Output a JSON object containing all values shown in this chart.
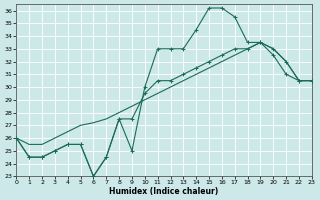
{
  "xlabel": "Humidex (Indice chaleur)",
  "background_color": "#cce8e8",
  "line_color": "#1a6b5a",
  "grid_color": "#b8d8d8",
  "x_values": [
    0,
    1,
    2,
    3,
    4,
    5,
    6,
    7,
    8,
    9,
    10,
    11,
    12,
    13,
    14,
    15,
    16,
    17,
    18,
    19,
    20,
    21,
    22,
    23
  ],
  "line1_y": [
    26.0,
    24.5,
    24.5,
    25.0,
    25.5,
    25.5,
    23.0,
    24.5,
    27.5,
    25.0,
    30.0,
    33.0,
    33.0,
    33.0,
    34.5,
    36.2,
    36.2,
    35.5,
    33.5,
    33.5,
    32.5,
    31.0,
    30.5,
    30.5
  ],
  "line2_y": [
    26.0,
    24.5,
    24.5,
    25.0,
    25.5,
    25.5,
    23.0,
    24.5,
    27.5,
    27.5,
    29.5,
    30.5,
    30.5,
    31.0,
    31.5,
    32.0,
    32.5,
    33.0,
    33.0,
    33.5,
    33.0,
    32.0,
    30.5,
    30.5
  ],
  "line3_y": [
    26.0,
    25.5,
    25.5,
    26.0,
    26.5,
    27.0,
    27.2,
    27.5,
    28.0,
    28.5,
    29.0,
    29.5,
    30.0,
    30.5,
    31.0,
    31.5,
    32.0,
    32.5,
    33.0,
    33.5,
    33.0,
    32.0,
    30.5,
    30.5
  ],
  "ylim": [
    23,
    36.5
  ],
  "xlim": [
    0,
    23
  ],
  "yticks": [
    23,
    24,
    25,
    26,
    27,
    28,
    29,
    30,
    31,
    32,
    33,
    34,
    35,
    36
  ],
  "xticks": [
    0,
    1,
    2,
    3,
    4,
    5,
    6,
    7,
    8,
    9,
    10,
    11,
    12,
    13,
    14,
    15,
    16,
    17,
    18,
    19,
    20,
    21,
    22,
    23
  ]
}
